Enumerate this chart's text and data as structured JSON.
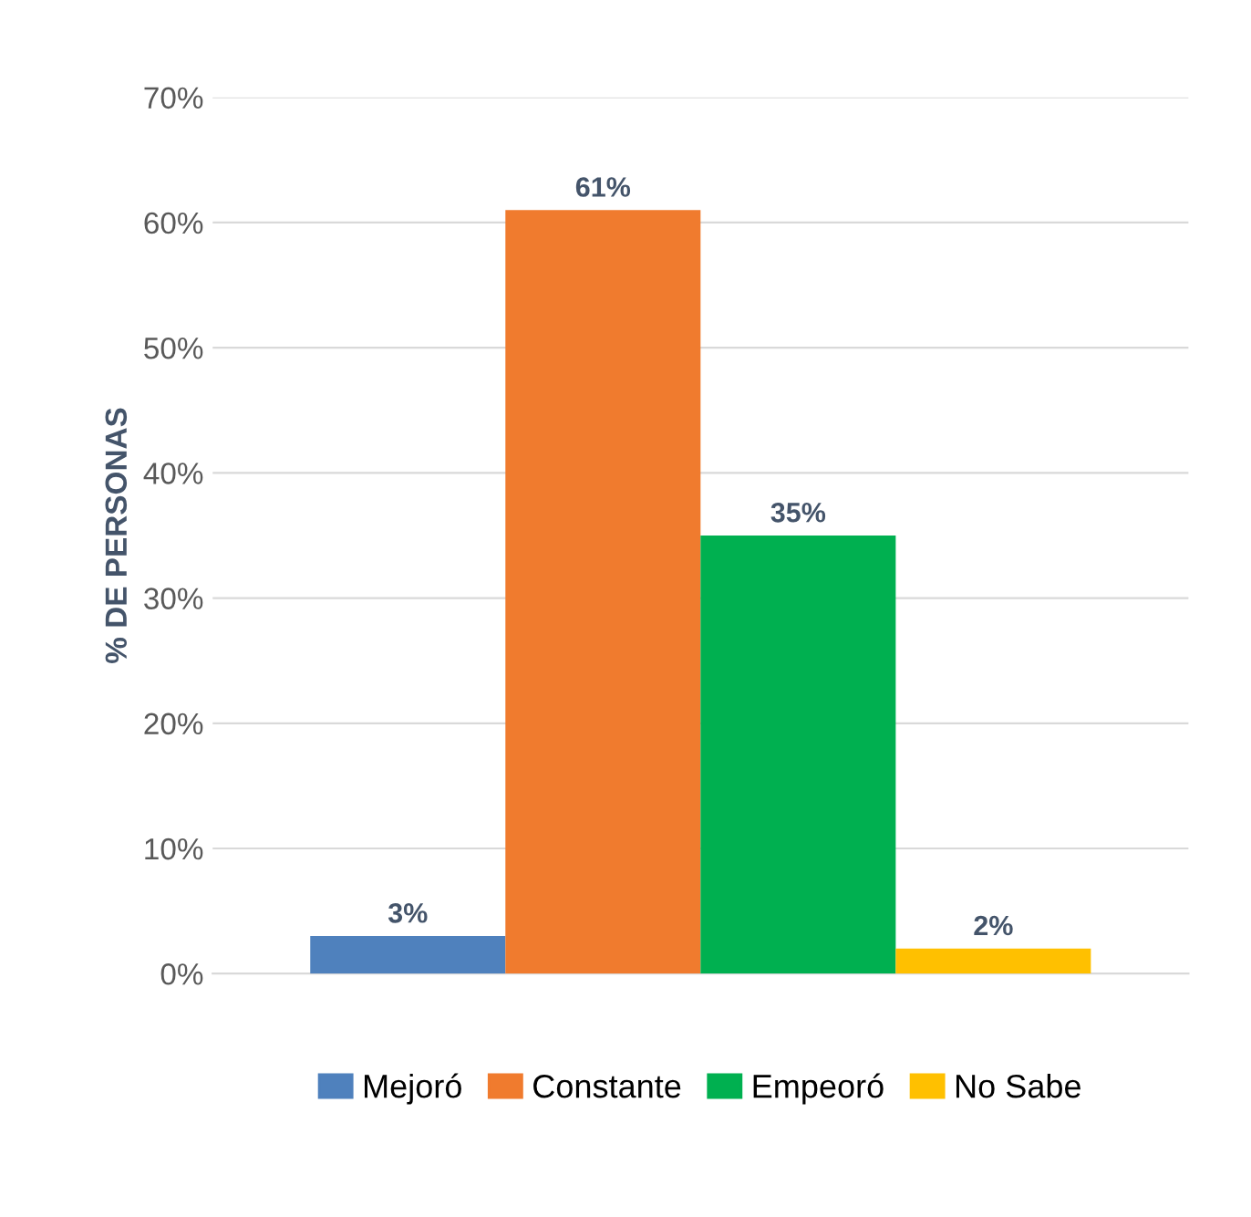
{
  "chart_data": {
    "type": "bar",
    "ylabel": "% DE PERSONAS",
    "categories": [
      null
    ],
    "series": [
      {
        "name": "Mejoró",
        "color": "#4f81bd",
        "values": [
          3
        ],
        "value_labels": [
          "3%"
        ]
      },
      {
        "name": "Constante",
        "color": "#f07b2e",
        "values": [
          61
        ],
        "value_labels": [
          "61%"
        ]
      },
      {
        "name": "Empeoró",
        "color": "#00b050",
        "values": [
          35
        ],
        "value_labels": [
          "35%"
        ]
      },
      {
        "name": "No Sabe",
        "color": "#ffc000",
        "values": [
          2
        ],
        "value_labels": [
          "2%"
        ]
      }
    ],
    "ylim": [
      0,
      70
    ],
    "yticks": [
      {
        "value": 0,
        "label": "0%"
      },
      {
        "value": 10,
        "label": "10%"
      },
      {
        "value": 20,
        "label": "20%"
      },
      {
        "value": 30,
        "label": "30%"
      },
      {
        "value": 40,
        "label": "40%"
      },
      {
        "value": 50,
        "label": "50%"
      },
      {
        "value": 60,
        "label": "60%"
      },
      {
        "value": 70,
        "label": "70%"
      }
    ],
    "grid": "y",
    "legend": "bottom"
  }
}
